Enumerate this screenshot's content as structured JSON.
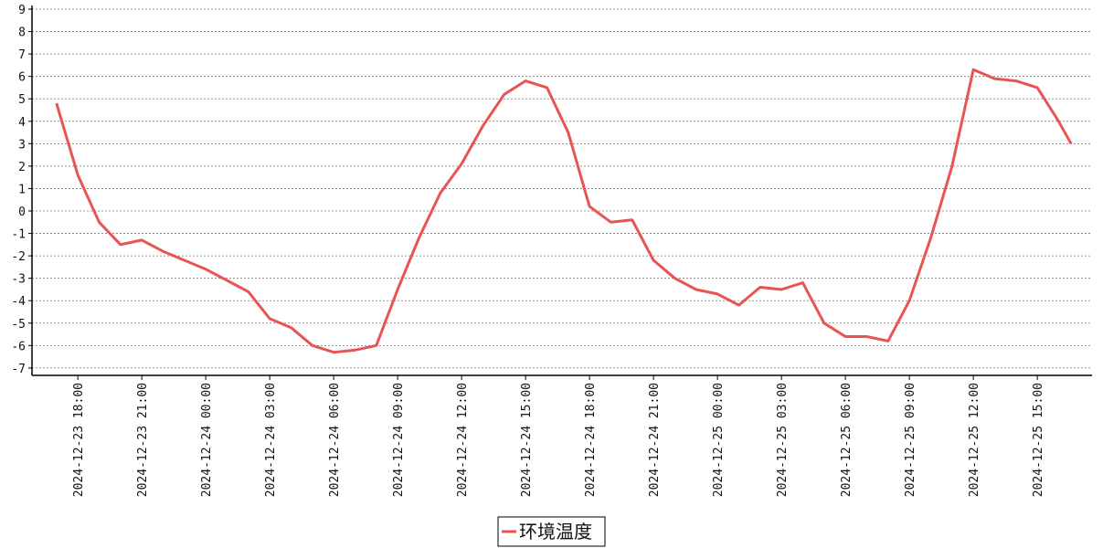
{
  "chart_data": {
    "type": "line",
    "x": [
      "2024-12-23 17:00",
      "2024-12-23 18:00",
      "2024-12-23 19:00",
      "2024-12-23 20:00",
      "2024-12-23 21:00",
      "2024-12-23 22:00",
      "2024-12-23 23:00",
      "2024-12-24 00:00",
      "2024-12-24 01:00",
      "2024-12-24 02:00",
      "2024-12-24 03:00",
      "2024-12-24 04:00",
      "2024-12-24 05:00",
      "2024-12-24 06:00",
      "2024-12-24 07:00",
      "2024-12-24 08:00",
      "2024-12-24 09:00",
      "2024-12-24 10:00",
      "2024-12-24 11:00",
      "2024-12-24 12:00",
      "2024-12-24 13:00",
      "2024-12-24 14:00",
      "2024-12-24 15:00",
      "2024-12-24 16:00",
      "2024-12-24 17:00",
      "2024-12-24 18:00",
      "2024-12-24 19:00",
      "2024-12-24 20:00",
      "2024-12-24 21:00",
      "2024-12-24 22:00",
      "2024-12-24 23:00",
      "2024-12-25 00:00",
      "2024-12-25 01:00",
      "2024-12-25 02:00",
      "2024-12-25 03:00",
      "2024-12-25 04:00",
      "2024-12-25 05:00",
      "2024-12-25 06:00",
      "2024-12-25 07:00",
      "2024-12-25 08:00",
      "2024-12-25 09:00",
      "2024-12-25 10:00",
      "2024-12-25 11:00",
      "2024-12-25 12:00",
      "2024-12-25 13:00",
      "2024-12-25 14:00",
      "2024-12-25 15:00",
      "2024-12-25 16:00",
      "2024-12-25 16:35"
    ],
    "series": [
      {
        "name": "环境温度",
        "color": "#e85454",
        "values": [
          4.8,
          1.6,
          -0.5,
          -1.5,
          -1.3,
          -1.8,
          -2.2,
          -2.6,
          -3.1,
          -3.6,
          -4.8,
          -5.2,
          -6.0,
          -6.3,
          -6.2,
          -6.0,
          -3.5,
          -1.2,
          0.8,
          2.1,
          3.8,
          5.2,
          5.8,
          5.5,
          3.5,
          0.2,
          -0.5,
          -0.4,
          -2.2,
          -3.0,
          -3.5,
          -3.7,
          -4.2,
          -3.4,
          -3.5,
          -3.2,
          -5.0,
          -5.6,
          -5.6,
          -5.8,
          -4.0,
          -1.2,
          2.0,
          6.3,
          5.9,
          5.8,
          5.5,
          4.0,
          3.0
        ]
      }
    ],
    "xlim": [
      "2024-12-23 15:51",
      "2024-12-25 17:34"
    ],
    "xticks": [
      "2024-12-23 18:00",
      "2024-12-23 21:00",
      "2024-12-24 00:00",
      "2024-12-24 03:00",
      "2024-12-24 06:00",
      "2024-12-24 09:00",
      "2024-12-24 12:00",
      "2024-12-24 15:00",
      "2024-12-24 18:00",
      "2024-12-24 21:00",
      "2024-12-25 00:00",
      "2024-12-25 03:00",
      "2024-12-25 06:00",
      "2024-12-25 09:00",
      "2024-12-25 12:00",
      "2024-12-25 15:00"
    ],
    "ylim": [
      -7.33,
      9
    ],
    "yticks": [
      -7,
      -6,
      -5,
      -4,
      -3,
      -2,
      -1,
      0,
      1,
      2,
      3,
      4,
      5,
      6,
      7,
      8,
      9
    ],
    "grid": true,
    "legend": "bottom"
  }
}
